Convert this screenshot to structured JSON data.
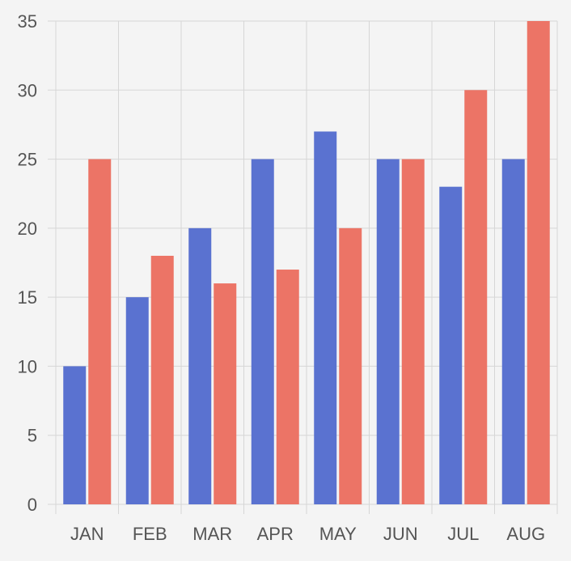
{
  "chart_data": {
    "type": "bar",
    "title": "",
    "xlabel": "",
    "ylabel": "",
    "categories": [
      "JAN",
      "FEB",
      "MAR",
      "APR",
      "MAY",
      "JUN",
      "JUL",
      "AUG"
    ],
    "series": [
      {
        "values": [
          10,
          15,
          20,
          25,
          27,
          25,
          23,
          25
        ],
        "color": "#5a72d0"
      },
      {
        "values": [
          25,
          18,
          16,
          17,
          20,
          25,
          30,
          35
        ],
        "color": "#ec7466"
      }
    ],
    "ylim": [
      0,
      35
    ],
    "y_ticks": [
      "0",
      "5",
      "10",
      "15",
      "20",
      "25",
      "30",
      "35"
    ],
    "grid": true,
    "legend": "none"
  },
  "colors": {
    "background": "#f4f4f4",
    "grid": "#d6d6d6",
    "tick_text": "#555555"
  }
}
